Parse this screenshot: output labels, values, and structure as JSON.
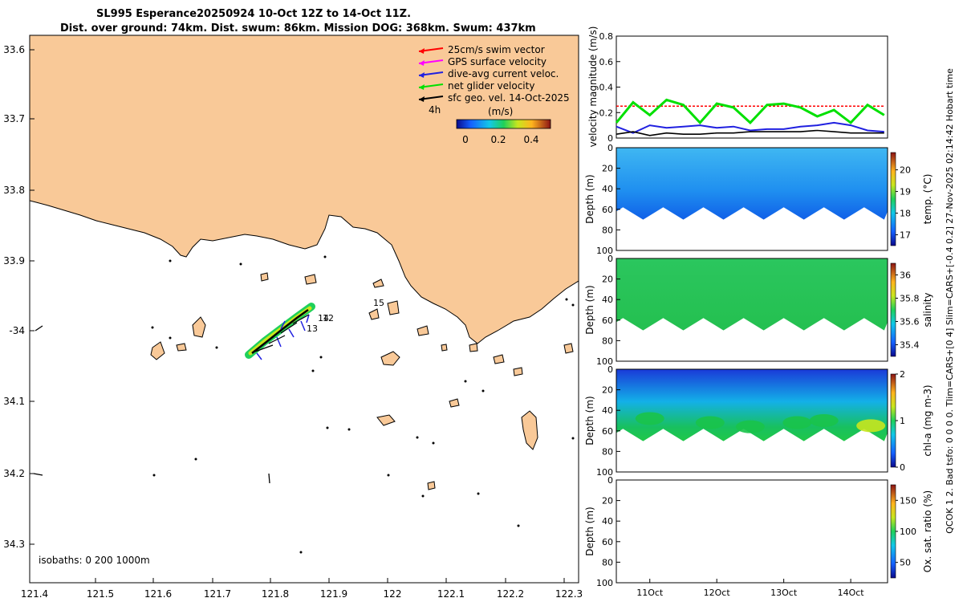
{
  "title": {
    "line1": "SL995 Esperance20250924 10-Oct 12Z to 14-Oct 11Z.",
    "line2": "Dist. over ground: 74km. Dist. swum: 86km. Mission DOG: 368km. Swum: 437km"
  },
  "side_note": "QCOK 1  2. Bad tsfo: 0  0  0  0. Tlim=CARS+[0 4] Slim=CARS+[-0.4 0.2] 27-Nov-2025 02:14:42 Hobart time",
  "colors": {
    "land": "#f9c998",
    "swim": "#ff0000",
    "gps": "#ff00ff",
    "dive_avg": "#2020e0",
    "net": "#00e000",
    "sfc_geo": "#000000"
  },
  "map": {
    "lon_ticks": [
      "121.4",
      "121.5",
      "121.6",
      "121.7",
      "121.8",
      "121.9",
      "122",
      "122.1",
      "122.2",
      "122.3"
    ],
    "lat_ticks": [
      "33.6",
      "33.7",
      "33.8",
      "33.9",
      "-34",
      "34.1",
      "34.2",
      "34.3"
    ],
    "legend": [
      {
        "label": "25cm/s swim vector",
        "color": "#ff0000"
      },
      {
        "label": "GPS surface velocity",
        "color": "#ff00ff"
      },
      {
        "label": "dive-avg current veloc.",
        "color": "#2020e0"
      },
      {
        "label": "net glider velocity",
        "color": "#00e000"
      },
      {
        "label": "sfc geo. vel. 14-Oct-2025",
        "color": "#000000"
      }
    ],
    "time_step": "4h",
    "colorbar_units": "(m/s)",
    "colorbar_ticks": [
      "0",
      "0.2",
      "0.4"
    ],
    "day_labels": [
      "14",
      "12",
      "13",
      "15"
    ],
    "isobaths": "isobaths: 0   200  1000m"
  },
  "chart_data": [
    {
      "type": "line",
      "title": "",
      "ylabel": "velocity magnitude (m/s)",
      "ylim": [
        0,
        0.8
      ],
      "yticks": [
        "0",
        "0.2",
        "0.4",
        "0.6",
        "0.8"
      ],
      "x": [
        10.5,
        10.75,
        11.0,
        11.25,
        11.5,
        11.75,
        12.0,
        12.25,
        12.5,
        12.75,
        13.0,
        13.25,
        13.5,
        13.75,
        14.0,
        14.25,
        14.5
      ],
      "series": [
        {
          "name": "swim speed",
          "values": [
            0.25,
            0.25,
            0.25,
            0.25,
            0.25,
            0.25,
            0.25,
            0.25,
            0.25,
            0.25,
            0.25,
            0.25,
            0.25,
            0.25,
            0.25,
            0.25,
            0.25
          ]
        },
        {
          "name": "net glider velocity",
          "values": [
            0.12,
            0.28,
            0.18,
            0.3,
            0.26,
            0.12,
            0.27,
            0.24,
            0.12,
            0.26,
            0.27,
            0.24,
            0.17,
            0.22,
            0.12,
            0.26,
            0.18
          ]
        },
        {
          "name": "dive-avg current",
          "values": [
            0.09,
            0.04,
            0.1,
            0.08,
            0.09,
            0.1,
            0.08,
            0.09,
            0.06,
            0.07,
            0.07,
            0.09,
            0.1,
            0.12,
            0.1,
            0.06,
            0.05
          ]
        },
        {
          "name": "sfc geo vel",
          "values": [
            0.03,
            0.05,
            0.02,
            0.04,
            0.03,
            0.03,
            0.04,
            0.04,
            0.05,
            0.05,
            0.05,
            0.05,
            0.06,
            0.05,
            0.04,
            0.04,
            0.04
          ]
        }
      ]
    },
    {
      "type": "heatmap",
      "ylabel": "Depth (m)",
      "colorbar_label": "temp. (°C)",
      "yticks": [
        "0",
        "20",
        "40",
        "60",
        "80",
        "100"
      ],
      "cbar_ticks": [
        "17",
        "18",
        "19",
        "20"
      ],
      "clim": [
        16.5,
        20.8
      ]
    },
    {
      "type": "heatmap",
      "ylabel": "Depth (m)",
      "colorbar_label": "salinity",
      "yticks": [
        "0",
        "20",
        "40",
        "60",
        "80",
        "100"
      ],
      "cbar_ticks": [
        "35.4",
        "35.6",
        "35.8",
        "36"
      ],
      "clim": [
        35.3,
        36.1
      ]
    },
    {
      "type": "heatmap",
      "ylabel": "Depth (m)",
      "colorbar_label": "chl-a (mg m-3)",
      "yticks": [
        "0",
        "20",
        "40",
        "60",
        "80",
        "100"
      ],
      "cbar_ticks": [
        "0",
        "1",
        "2"
      ],
      "clim": [
        0,
        2
      ]
    },
    {
      "type": "heatmap",
      "ylabel": "Depth (m)",
      "colorbar_label": "Ox. sat. ratio (%)",
      "yticks": [
        "0",
        "20",
        "40",
        "60",
        "80",
        "100"
      ],
      "cbar_ticks": [
        "50",
        "100",
        "150"
      ],
      "clim": [
        25,
        175
      ]
    }
  ],
  "time_axis": {
    "labels": [
      "11Oct",
      "12Oct",
      "13Oct",
      "14Oct"
    ]
  }
}
